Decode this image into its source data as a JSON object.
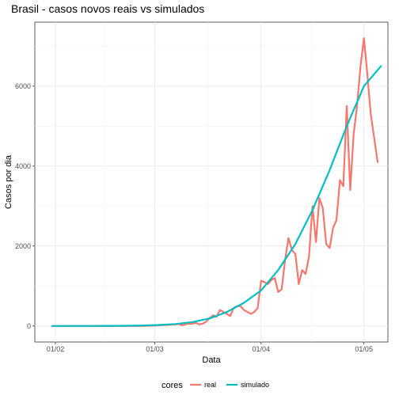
{
  "chart_data": {
    "type": "line",
    "title": "Brasil - casos novos reais vs simulados",
    "xlabel": "Data",
    "ylabel": "Casos por dia",
    "x_tick_labels": [
      "01/02",
      "01/03",
      "01/04",
      "01/05"
    ],
    "x_tick_days": [
      0,
      29,
      60,
      90
    ],
    "x_range_days": [
      -6,
      97
    ],
    "ylim": [
      -400,
      7600
    ],
    "y_ticks": [
      0,
      2000,
      4000,
      6000
    ],
    "grid": true,
    "legend": {
      "title": "cores",
      "position": "bottom",
      "entries": [
        "real",
        "simulado"
      ]
    },
    "series": [
      {
        "name": "real",
        "color": "#F8766D",
        "x_days": [
          -1,
          0,
          5,
          10,
          15,
          20,
          25,
          26,
          27,
          28,
          29,
          30,
          31,
          32,
          33,
          34,
          35,
          36,
          37,
          38,
          39,
          40,
          41,
          42,
          43,
          44,
          45,
          46,
          47,
          48,
          49,
          50,
          51,
          52,
          53,
          54,
          55,
          56,
          57,
          58,
          59,
          60,
          61,
          62,
          63,
          64,
          65,
          66,
          67,
          68,
          69,
          70,
          71,
          72,
          73,
          74,
          75,
          76,
          77,
          78,
          79,
          80,
          81,
          82,
          83,
          84,
          85,
          86,
          87,
          88,
          89,
          90,
          91,
          92,
          93,
          94
        ],
        "values": [
          0,
          0,
          0,
          0,
          0,
          0,
          0,
          2,
          5,
          8,
          10,
          15,
          20,
          25,
          30,
          35,
          40,
          50,
          20,
          45,
          60,
          55,
          80,
          40,
          60,
          110,
          200,
          270,
          230,
          400,
          350,
          300,
          250,
          450,
          500,
          500,
          400,
          350,
          300,
          350,
          450,
          1130,
          1100,
          1050,
          1150,
          1200,
          850,
          920,
          1650,
          2200,
          1900,
          1800,
          1050,
          1400,
          1300,
          1750,
          3000,
          2100,
          3200,
          2950,
          2050,
          1950,
          2450,
          2650,
          3650,
          3500,
          5500,
          3400,
          4800,
          5500,
          6500,
          7200,
          6300,
          5300,
          4700,
          4100
        ]
      },
      {
        "name": "simulado",
        "color": "#00BFC4",
        "x_days": [
          -1,
          0,
          5,
          10,
          15,
          20,
          25,
          30,
          35,
          40,
          45,
          50,
          55,
          60,
          65,
          70,
          75,
          80,
          85,
          90,
          95
        ],
        "values": [
          0,
          0,
          1,
          2,
          3,
          5,
          12,
          25,
          50,
          100,
          190,
          350,
          580,
          890,
          1400,
          2050,
          2900,
          3900,
          5000,
          6000,
          6500
        ]
      }
    ]
  }
}
